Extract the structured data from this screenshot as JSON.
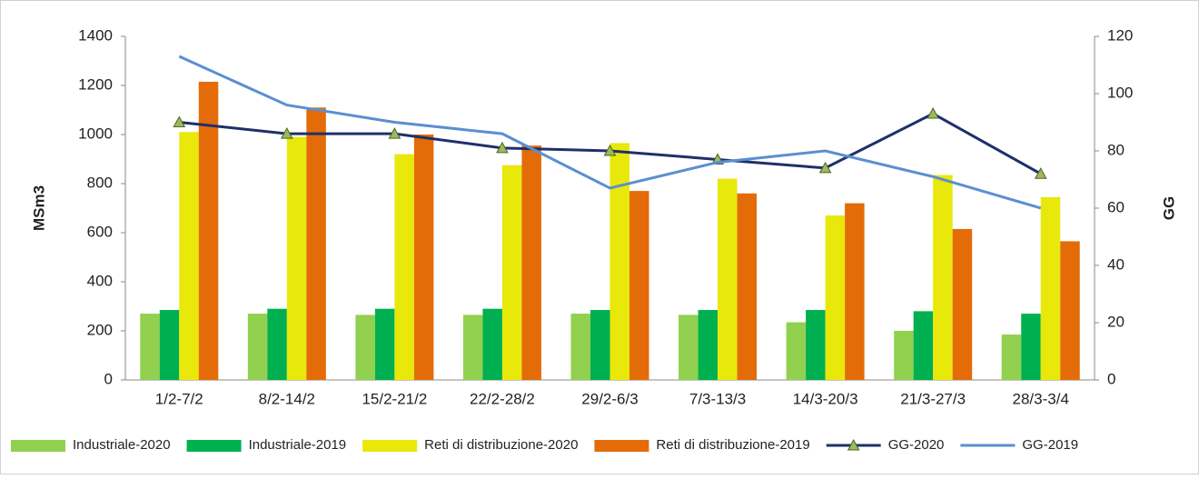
{
  "chart_data": {
    "type": "bar",
    "categories": [
      "1/2-7/2",
      "8/2-14/2",
      "15/2-21/2",
      "22/2-28/2",
      "29/2-6/3",
      "7/3-13/3",
      "14/3-20/3",
      "21/3-27/3",
      "28/3-3/4"
    ],
    "y_label": "MSm3",
    "y2_label": "GG",
    "ylim": [
      0,
      1400
    ],
    "yticks": [
      0,
      200,
      400,
      600,
      800,
      1000,
      1200,
      1400
    ],
    "y2lim": [
      0,
      120
    ],
    "y2ticks": [
      0,
      20,
      40,
      60,
      80,
      100,
      120
    ],
    "series": [
      {
        "name": "Industriale-2020",
        "color": "#92d050",
        "type": "bar",
        "values": [
          270,
          270,
          265,
          265,
          270,
          265,
          235,
          200,
          185
        ]
      },
      {
        "name": "Industriale-2019",
        "color": "#00b050",
        "type": "bar",
        "values": [
          285,
          290,
          290,
          290,
          285,
          285,
          285,
          280,
          270
        ]
      },
      {
        "name": "Reti di distribuzione-2020",
        "color": "#e8e80a",
        "type": "bar",
        "values": [
          1010,
          990,
          920,
          875,
          965,
          820,
          670,
          835,
          745
        ]
      },
      {
        "name": "Reti di distribuzione-2019",
        "color": "#e36c09",
        "type": "bar",
        "values": [
          1215,
          1110,
          1000,
          955,
          770,
          760,
          720,
          615,
          565
        ]
      },
      {
        "name": "GG-2020",
        "color": "#1f2f6b",
        "type": "line",
        "axis": "y2",
        "marker": "triangle",
        "values": [
          90,
          86,
          86,
          81,
          80,
          77,
          74,
          93,
          72
        ]
      },
      {
        "name": "GG-2019",
        "color": "#5b8fd0",
        "type": "line",
        "axis": "y2",
        "values": [
          113,
          96,
          90,
          86,
          67,
          76,
          80,
          71,
          60
        ]
      }
    ]
  }
}
